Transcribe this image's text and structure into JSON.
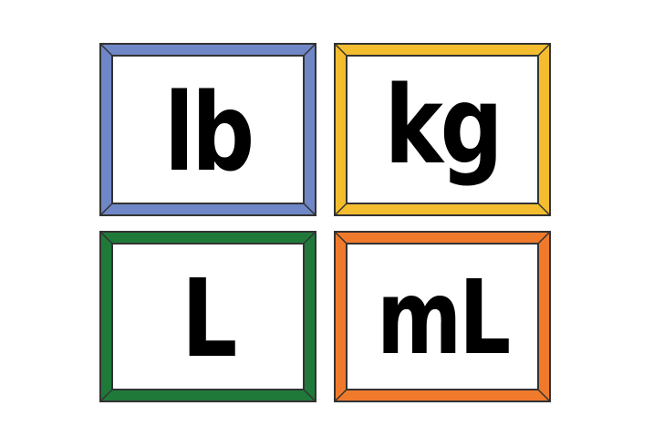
{
  "cards": [
    {
      "text": "lb",
      "color": "#6f86c7"
    },
    {
      "text": "kg",
      "color": "#f4bd2f"
    },
    {
      "text": "L",
      "color": "#1f7a3a"
    },
    {
      "text": "mL",
      "color": "#f07a2c"
    }
  ]
}
